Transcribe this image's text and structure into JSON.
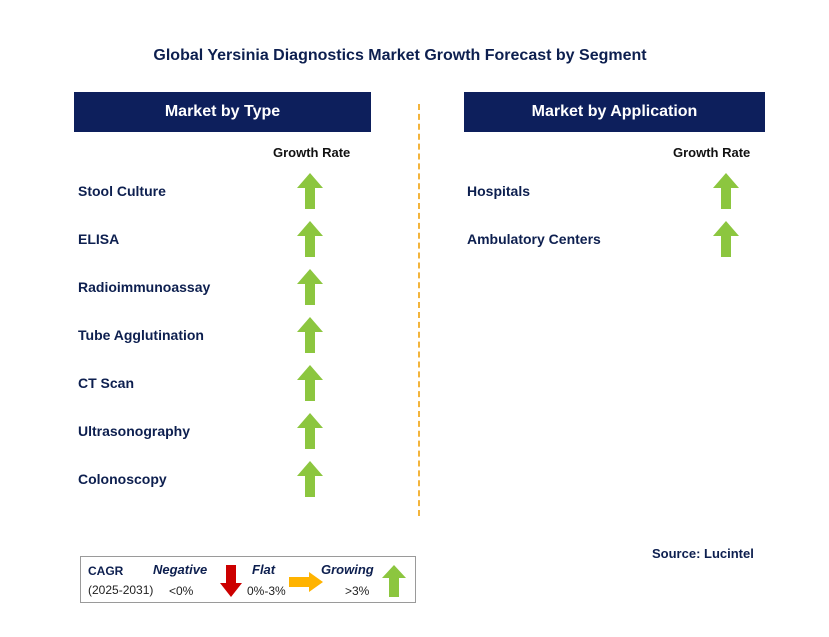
{
  "chart_data": {
    "type": "table",
    "title": "Global Yersinia Diagnostics Market Growth Forecast by Segment",
    "column_header": "Growth Rate",
    "panels": [
      {
        "header": "Market by Type",
        "rows": [
          {
            "label": "Stool Culture",
            "trend": "Growing"
          },
          {
            "label": "ELISA",
            "trend": "Growing"
          },
          {
            "label": "Radioimmunoassay",
            "trend": "Growing"
          },
          {
            "label": "Tube Agglutination",
            "trend": "Growing"
          },
          {
            "label": "CT Scan",
            "trend": "Growing"
          },
          {
            "label": "Ultrasonography",
            "trend": "Growing"
          },
          {
            "label": "Colonoscopy",
            "trend": "Growing"
          }
        ]
      },
      {
        "header": "Market by Application",
        "rows": [
          {
            "label": "Hospitals",
            "trend": "Growing"
          },
          {
            "label": "Ambulatory Centers",
            "trend": "Growing"
          }
        ]
      }
    ],
    "legend": {
      "cagr_label": "CAGR",
      "period": "(2025-2031)",
      "items": [
        {
          "name": "Negative",
          "range": "<0%",
          "icon": "red-down-arrow",
          "color": "#cc0000"
        },
        {
          "name": "Flat",
          "range": "0%-3%",
          "icon": "orange-right-arrow",
          "color": "#ffb300"
        },
        {
          "name": "Growing",
          "range": ">3%",
          "icon": "green-up-arrow",
          "color": "#8cc63f"
        }
      ]
    },
    "source": "Source: Lucintel"
  },
  "colors": {
    "header_bg": "#0d1f5c",
    "growing": "#8cc63f",
    "flat": "#ffb300",
    "negative": "#cc0000",
    "divider": "#f3b43c"
  }
}
